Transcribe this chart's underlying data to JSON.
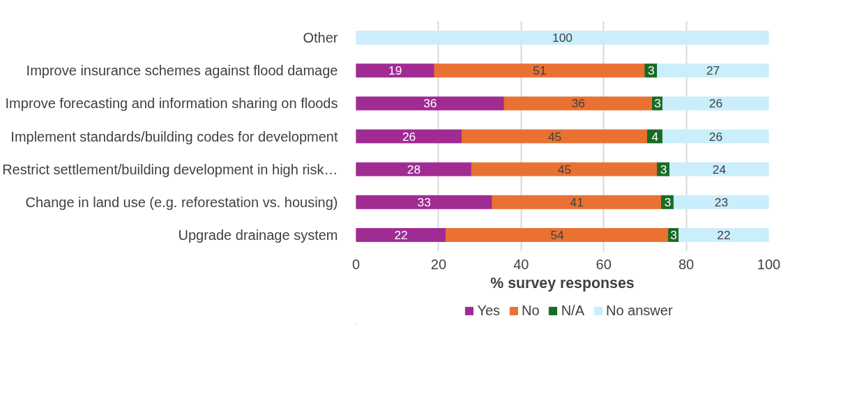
{
  "chart_data": {
    "type": "bar",
    "orientation": "horizontal",
    "stacked": true,
    "xlabel": "% survey responses",
    "categories": [
      "Other",
      "Improve insurance schemes against flood damage",
      "Improve forecasting and information sharing on floods",
      "Implement standards/building codes for development",
      "Restrict settlement/building development in high risk…",
      "Change in land use (e.g. reforestation vs. housing)",
      "Upgrade drainage system"
    ],
    "series": [
      {
        "name": "Yes",
        "color": "#a02b93",
        "values": [
          null,
          19,
          35.9,
          25.7,
          28,
          33,
          21.8
        ],
        "value_labels": [
          null,
          "19",
          "36",
          "26",
          "28",
          "33",
          "22"
        ]
      },
      {
        "name": "No",
        "color": "#e97132",
        "values": [
          null,
          51,
          35.9,
          44.9,
          45,
          41,
          53.9
        ],
        "value_labels": [
          null,
          "51",
          "36",
          "45",
          "45",
          "41",
          "54"
        ]
      },
      {
        "name": "N/A",
        "color": "#196b24",
        "values": [
          null,
          3,
          2.5,
          3.7,
          3,
          3,
          2.5
        ],
        "value_labels": [
          null,
          "3",
          "3",
          "4",
          "3",
          "3",
          "3"
        ]
      },
      {
        "name": "No answer",
        "color": "#caeefb",
        "values": [
          100,
          27,
          25.7,
          25.7,
          24,
          23,
          21.8
        ],
        "value_labels": [
          "100",
          "27",
          "26",
          "26",
          "24",
          "23",
          "22"
        ]
      }
    ],
    "xlim": [
      0,
      100
    ],
    "xticks": [
      0,
      20,
      40,
      60,
      80,
      100
    ],
    "grid": "x",
    "legend": "bottom"
  }
}
